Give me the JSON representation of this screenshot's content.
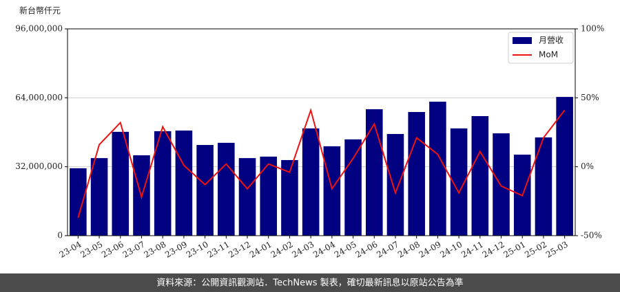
{
  "chart_data": {
    "type": "bar_line",
    "y_label": "新台幣仟元",
    "categories": [
      "23-04",
      "23-05",
      "23-06",
      "23-07",
      "23-08",
      "23-09",
      "23-10",
      "23-11",
      "23-12",
      "24-01",
      "24-02",
      "24-03",
      "24-04",
      "24-05",
      "24-06",
      "24-07",
      "24-08",
      "24-09",
      "24-10",
      "24-11",
      "24-12",
      "25-01",
      "25-02",
      "25-03"
    ],
    "series": [
      {
        "name": "月營收",
        "color": "#000080",
        "kind": "bar",
        "values": [
          31300000,
          36000000,
          48200000,
          37300000,
          48500000,
          48800000,
          42100000,
          43100000,
          36000000,
          36700000,
          35100000,
          49800000,
          41500000,
          44700000,
          58700000,
          47200000,
          57400000,
          62200000,
          49800000,
          55500000,
          47500000,
          37600000,
          45600000,
          64400000
        ]
      },
      {
        "name": "MoM",
        "color": "#ee1111",
        "kind": "line",
        "axis": "y2",
        "values": [
          -37,
          16,
          32,
          -22,
          29,
          1,
          -13,
          2,
          -16,
          2,
          -4,
          41,
          -16,
          6,
          31,
          -19,
          21,
          9,
          -19,
          11,
          -14,
          -21,
          21,
          41
        ]
      }
    ],
    "ylim": [
      0,
      96000000
    ],
    "yticks": [
      0,
      {
        "value": 32000000,
        "label": "32,000,000"
      },
      {
        "value": 64000000,
        "label": "64,000,000"
      },
      {
        "value": 96000000,
        "label": "96,000,000"
      }
    ],
    "y2lim": [
      -50,
      100
    ],
    "y2ticks": [
      {
        "value": -50,
        "label": "-50%"
      },
      {
        "value": 0,
        "label": "0%"
      },
      {
        "value": 50,
        "label": "50%"
      },
      {
        "value": 100,
        "label": "100%"
      }
    ],
    "grid": true,
    "legend": "upper right",
    "footer": "資料來源：公開資訊觀測站．TechNews 製表，確切最新訊息以原站公告為準"
  }
}
